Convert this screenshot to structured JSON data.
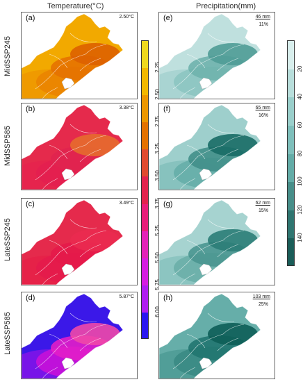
{
  "headers": {
    "temperature": "Temperature(°C)",
    "precipitation": "Precipitation(mm)"
  },
  "rows": [
    {
      "label": "MidSSP245"
    },
    {
      "label": "MidSSP585"
    },
    {
      "label": "LateSSP245"
    },
    {
      "label": "LateSSP585"
    }
  ],
  "temp_panels": [
    {
      "letter": "(a)",
      "value": "2.50°C",
      "colors": [
        "#f2a900",
        "#ee9800",
        "#ea8400",
        "#e57200",
        "#dd6000"
      ]
    },
    {
      "letter": "(b)",
      "value": "3.38°C",
      "colors": [
        "#e52a4c",
        "#e5244e",
        "#e31f50",
        "#e0244f",
        "#e66b2e"
      ]
    },
    {
      "letter": "(c)",
      "value": "3.49°C",
      "colors": [
        "#e52a4c",
        "#e62148",
        "#e41b4b",
        "#e41a4a",
        "#ea2a50"
      ]
    },
    {
      "letter": "(d)",
      "value": "5.87°C",
      "colors": [
        "#3b18e8",
        "#7f14e8",
        "#c611d8",
        "#e21ec8",
        "#f048a8"
      ]
    }
  ],
  "precip_panels": [
    {
      "letter": "(e)",
      "mm": "46 mm",
      "pct": "11%",
      "colors": [
        "#bfe0de",
        "#a6d3d0",
        "#8cc5c1",
        "#6fb2ad",
        "#4f9c96"
      ]
    },
    {
      "letter": "(f)",
      "mm": "65 mm",
      "pct": "16%",
      "colors": [
        "#9ecfcc",
        "#84c0bc",
        "#66aea9",
        "#418f89",
        "#186b66"
      ]
    },
    {
      "letter": "(g)",
      "mm": "62 mm",
      "pct": "15%",
      "colors": [
        "#a6d3d0",
        "#8ac3bf",
        "#6aaea9",
        "#4a9690",
        "#2b7d77"
      ]
    },
    {
      "letter": "(h)",
      "mm": "103 mm",
      "pct": "25%",
      "colors": [
        "#66aea9",
        "#4f9c96",
        "#3a8a84",
        "#217570",
        "#0d5e58"
      ]
    }
  ],
  "temp_legend": {
    "ticks": [
      "2.25",
      "2.50",
      "2.75",
      "3.25",
      "3.50",
      "3.75",
      "5.25",
      "5.50",
      "5.75",
      "6.00"
    ],
    "colors": [
      "#efd81e",
      "#f2b800",
      "#ed9700",
      "#e47200",
      "#e04b2f",
      "#e2234e",
      "#e81e7a",
      "#e323b8",
      "#d61ee0",
      "#b01ef0",
      "#2a16f0"
    ]
  },
  "precip_legend": {
    "ticks": [
      "20",
      "40",
      "60",
      "80",
      "100",
      "120",
      "140"
    ],
    "colors": [
      "#d8eeec",
      "#b8dedb",
      "#9acfcb",
      "#7ebfbb",
      "#63aca7",
      "#478e89",
      "#2f7570",
      "#1a5d58"
    ]
  }
}
